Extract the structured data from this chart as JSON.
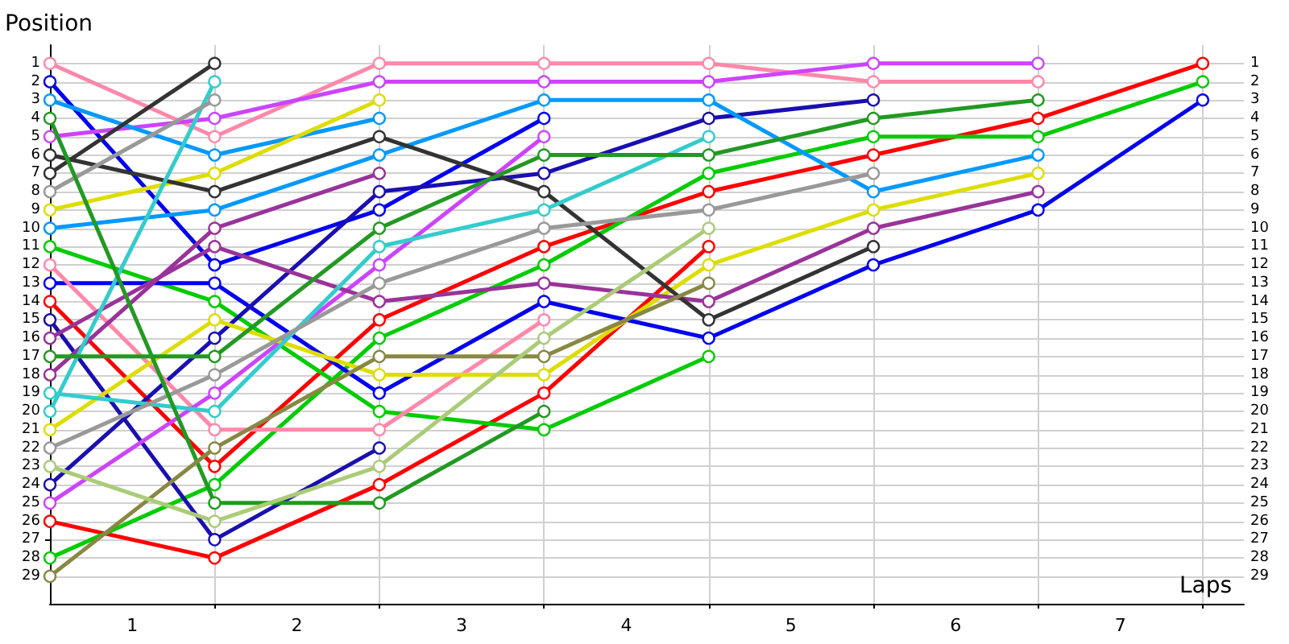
{
  "chart_data": {
    "type": "line",
    "xlabel": "Laps",
    "ylabel": "Position",
    "x": [
      0,
      1,
      2,
      3,
      4,
      5,
      6,
      7
    ],
    "xlim": [
      0,
      7.25
    ],
    "xticks": [
      {
        "value": 1,
        "label": null
      },
      {
        "value": 2,
        "label": null
      },
      {
        "value": 3,
        "label": null
      },
      {
        "value": 4,
        "label": null
      },
      {
        "value": 5,
        "label": null
      },
      {
        "value": 6,
        "label": null
      },
      {
        "value": 7,
        "label": null
      },
      {
        "value": 0.5,
        "label": "1"
      },
      {
        "value": 1.5,
        "label": "2"
      },
      {
        "value": 2.5,
        "label": "3"
      },
      {
        "value": 3.5,
        "label": "4"
      },
      {
        "value": 4.5,
        "label": "5"
      },
      {
        "value": 5.5,
        "label": "6"
      },
      {
        "value": 6.5,
        "label": "7"
      }
    ],
    "ylim": [
      30.5,
      0
    ],
    "yticks": [
      1,
      2,
      3,
      4,
      5,
      6,
      7,
      8,
      9,
      10,
      11,
      12,
      13,
      14,
      15,
      16,
      17,
      18,
      19,
      20,
      21,
      22,
      23,
      24,
      25,
      26,
      27,
      28,
      29
    ],
    "y2lim": [
      30.5,
      0
    ],
    "y2ticks": [
      1,
      2,
      3,
      4,
      5,
      6,
      7,
      8,
      9,
      10,
      11,
      12,
      13,
      14,
      15,
      16,
      17,
      18,
      19,
      20,
      21,
      22,
      23,
      24,
      25,
      26,
      27,
      28,
      29
    ],
    "grid": true,
    "marker": "circle",
    "line_style": "solid",
    "series": [
      {
        "color": "#ff0000",
        "values": [
          14,
          23,
          15,
          11,
          8,
          6,
          4,
          1
        ]
      },
      {
        "color": "#ff0000",
        "values": [
          26,
          28,
          24,
          19,
          11,
          null,
          null,
          null
        ]
      },
      {
        "color": "#00cc00",
        "values": [
          28,
          24,
          16,
          12,
          7,
          5,
          5,
          2
        ]
      },
      {
        "color": "#00cc00",
        "values": [
          11,
          14,
          20,
          21,
          17,
          null,
          null,
          null
        ]
      },
      {
        "color": "#0000ee",
        "values": [
          2,
          12,
          9,
          4,
          null,
          null,
          null,
          null
        ]
      },
      {
        "color": "#0000ee",
        "values": [
          13,
          13,
          19,
          14,
          16,
          12,
          9,
          3
        ]
      },
      {
        "color": "#1a0fb0",
        "values": [
          15,
          27,
          22,
          null,
          null,
          null,
          null,
          null
        ]
      },
      {
        "color": "#1a0fb0",
        "values": [
          24,
          16,
          8,
          7,
          4,
          3,
          null,
          null
        ]
      },
      {
        "color": "#ff88aa",
        "values": [
          1,
          5,
          1,
          1,
          1,
          2,
          2,
          null
        ]
      },
      {
        "color": "#ff88aa",
        "values": [
          12,
          21,
          21,
          15,
          null,
          null,
          null,
          null
        ]
      },
      {
        "color": "#cc44ff",
        "values": [
          5,
          4,
          2,
          2,
          2,
          1,
          1,
          null
        ]
      },
      {
        "color": "#cc44ff",
        "values": [
          25,
          19,
          12,
          5,
          null,
          null,
          null,
          null
        ]
      },
      {
        "color": "#0099ff",
        "values": [
          3,
          6,
          4,
          null,
          null,
          null,
          null,
          null
        ]
      },
      {
        "color": "#0099ff",
        "values": [
          10,
          9,
          6,
          3,
          3,
          8,
          6,
          null
        ]
      },
      {
        "color": "#dddd00",
        "values": [
          9,
          7,
          3,
          null,
          null,
          null,
          null,
          null
        ]
      },
      {
        "color": "#dddd00",
        "values": [
          21,
          15,
          18,
          18,
          12,
          9,
          7,
          null
        ]
      },
      {
        "color": "#993399",
        "values": [
          18,
          10,
          7,
          null,
          null,
          null,
          null,
          null
        ]
      },
      {
        "color": "#993399",
        "values": [
          16,
          11,
          14,
          13,
          14,
          10,
          8,
          null
        ]
      },
      {
        "color": "#333333",
        "values": [
          7,
          1,
          null,
          null,
          null,
          null,
          null,
          null
        ]
      },
      {
        "color": "#333333",
        "values": [
          6,
          8,
          5,
          8,
          15,
          11,
          null,
          null
        ]
      },
      {
        "color": "#33cccc",
        "values": [
          20,
          2,
          null,
          null,
          null,
          null,
          null,
          null
        ]
      },
      {
        "color": "#33cccc",
        "values": [
          19,
          20,
          11,
          9,
          5,
          null,
          null,
          null
        ]
      },
      {
        "color": "#999999",
        "values": [
          8,
          3,
          null,
          null,
          null,
          null,
          null,
          null
        ]
      },
      {
        "color": "#999999",
        "values": [
          22,
          18,
          13,
          10,
          9,
          7,
          null,
          null
        ]
      },
      {
        "color": "#229922",
        "values": [
          4,
          25,
          25,
          20,
          null,
          null,
          null,
          null
        ]
      },
      {
        "color": "#229922",
        "values": [
          17,
          17,
          10,
          6,
          6,
          4,
          3,
          null
        ]
      },
      {
        "color": "#888844",
        "values": [
          29,
          22,
          17,
          17,
          13,
          null,
          null,
          null
        ]
      },
      {
        "color": "#aacc77",
        "values": [
          23,
          26,
          23,
          16,
          10,
          null,
          null,
          null
        ]
      }
    ]
  }
}
